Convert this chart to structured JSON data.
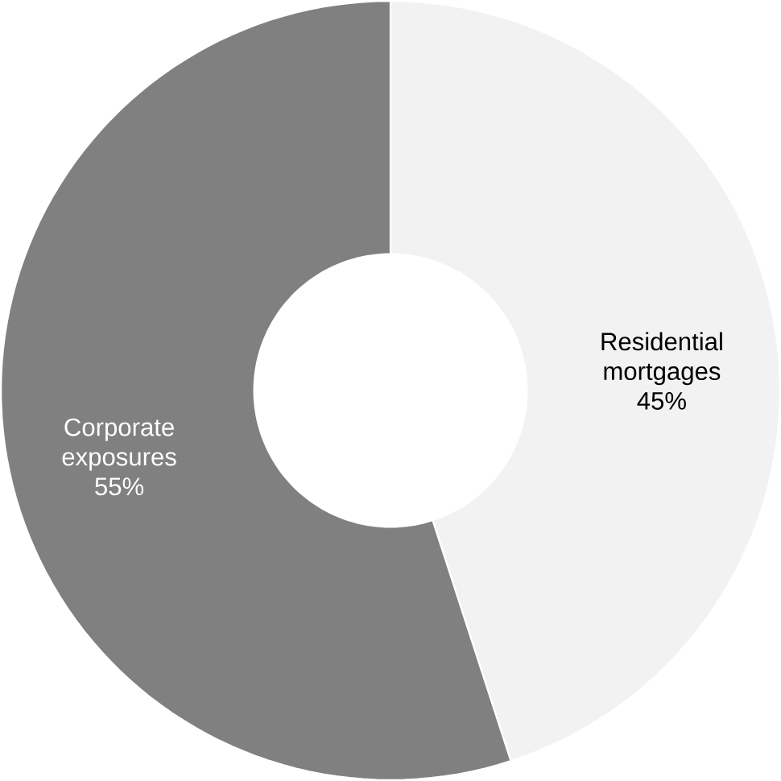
{
  "chart_data": {
    "type": "donut",
    "categories": [
      "Residential mortgages",
      "Corporate exposures"
    ],
    "values": [
      45,
      55
    ],
    "colors": [
      "#f2f2f2",
      "#808080"
    ],
    "value_labels": [
      "45%",
      "55%"
    ]
  }
}
